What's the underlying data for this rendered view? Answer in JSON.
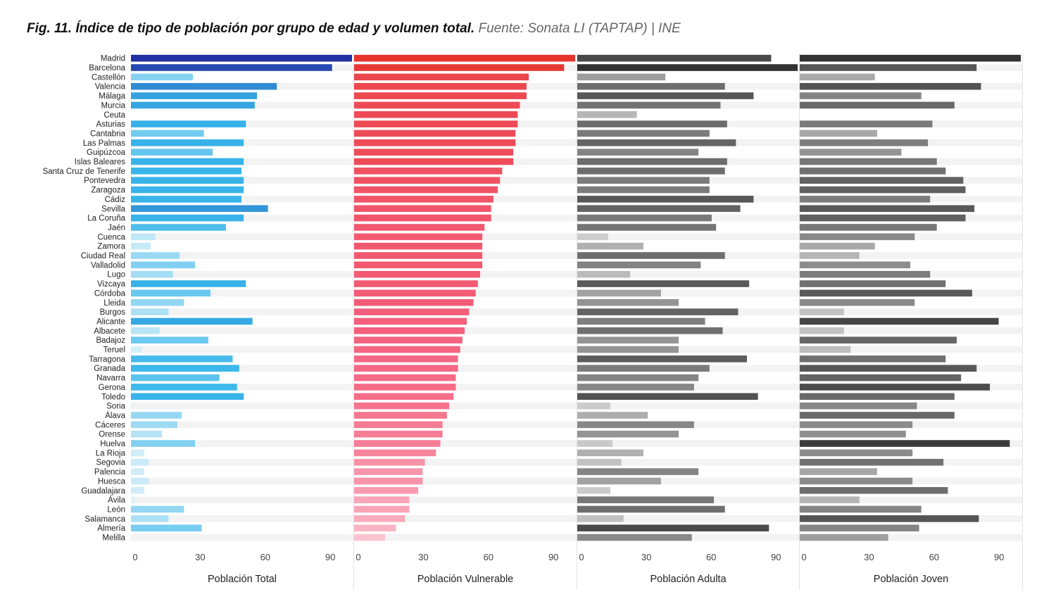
{
  "figure": {
    "title": "Fig. 11. Índice de tipo de población por grupo de edad y volumen total.",
    "source": "Fuente: Sonata LI (TAPTAP) | INE"
  },
  "chart_data": {
    "type": "bar",
    "orientation": "horizontal",
    "grid": false,
    "categories": [
      "Madrid",
      "Barcelona",
      "Castellón",
      "Valencia",
      "Málaga",
      "Murcia",
      "Ceuta",
      "Asturias",
      "Cantabria",
      "Las Palmas",
      "Guipúzcoa",
      "Islas Baleares",
      "Santa Cruz de Tenerife",
      "Pontevedra",
      "Zaragoza",
      "Cádiz",
      "Sevilla",
      "La Coruña",
      "Jaén",
      "Cuenca",
      "Zamora",
      "Ciudad Real",
      "Valladolid",
      "Lugo",
      "Vizcaya",
      "Córdoba",
      "Lleida",
      "Burgos",
      "Alicante",
      "Albacete",
      "Badajoz",
      "Teruel",
      "Tarragona",
      "Granada",
      "Navarra",
      "Gerona",
      "Toledo",
      "Soria",
      "Álava",
      "Cáceres",
      "Orense",
      "Huelva",
      "La Rioja",
      "Segovia",
      "Palencia",
      "Huesca",
      "Guadalajara",
      "Ávila",
      "León",
      "Salamanca",
      "Almería",
      "Melilla"
    ],
    "series": [
      {
        "name": "Población Total",
        "xlabel": "Población Total",
        "xlim": [
          0,
          100
        ],
        "ticks": [
          0,
          30,
          60,
          90
        ],
        "values": [
          100,
          91,
          28,
          66,
          57,
          56,
          0,
          52,
          33,
          51,
          37,
          51,
          50,
          51,
          51,
          50,
          62,
          51,
          43,
          11,
          9,
          22,
          29,
          19,
          52,
          36,
          24,
          17,
          55,
          13,
          35,
          5,
          46,
          49,
          40,
          48,
          51,
          1,
          23,
          21,
          14,
          29,
          6,
          8,
          6,
          8,
          6,
          2,
          24,
          17,
          32,
          0
        ]
      },
      {
        "name": "Población Vulnerable",
        "xlabel": "Población Vulnerable",
        "xlim": [
          0,
          100
        ],
        "ticks": [
          0,
          30,
          60,
          90
        ],
        "values": [
          100,
          95,
          79,
          78,
          78,
          75,
          74,
          74,
          73,
          73,
          72,
          72,
          67,
          66,
          65,
          63,
          62,
          62,
          59,
          58,
          58,
          58,
          58,
          57,
          56,
          55,
          54,
          52,
          51,
          50,
          49,
          48,
          47,
          47,
          46,
          46,
          45,
          43,
          42,
          40,
          40,
          39,
          37,
          32,
          31,
          31,
          29,
          25,
          25,
          23,
          19,
          14
        ]
      },
      {
        "name": "Población Adulta",
        "xlabel": "Población Adulta",
        "xlim": [
          0,
          100
        ],
        "ticks": [
          0,
          30,
          60,
          90
        ],
        "values": [
          88,
          100,
          40,
          67,
          80,
          65,
          27,
          68,
          60,
          72,
          55,
          68,
          67,
          60,
          60,
          80,
          74,
          61,
          63,
          14,
          30,
          67,
          56,
          24,
          78,
          38,
          46,
          73,
          58,
          66,
          46,
          46,
          77,
          60,
          55,
          53,
          82,
          15,
          32,
          53,
          46,
          16,
          30,
          20,
          55,
          38,
          15,
          62,
          67,
          21,
          87,
          52
        ]
      },
      {
        "name": "Población Joven",
        "xlabel": "Población Joven",
        "xlim": [
          0,
          100
        ],
        "ticks": [
          0,
          30,
          60,
          90
        ],
        "values": [
          100,
          80,
          34,
          82,
          55,
          70,
          0,
          60,
          35,
          58,
          46,
          62,
          66,
          74,
          75,
          59,
          79,
          75,
          62,
          52,
          34,
          27,
          50,
          59,
          66,
          78,
          52,
          20,
          90,
          20,
          71,
          23,
          66,
          80,
          73,
          86,
          70,
          53,
          70,
          51,
          48,
          95,
          51,
          65,
          35,
          51,
          67,
          27,
          55,
          81,
          54,
          40
        ]
      }
    ],
    "colors": {
      "total": [
        "#e6f5fa",
        "#38b6ea",
        "#2131a3"
      ],
      "vulnerable": [
        "#fde9f0",
        "#f4607d",
        "#e7332c"
      ],
      "adulta": [
        "#e6e6e6",
        "#333333"
      ],
      "joven": [
        "#e6e6e6",
        "#333333"
      ],
      "row_stripe": "#f3f3f3"
    }
  }
}
